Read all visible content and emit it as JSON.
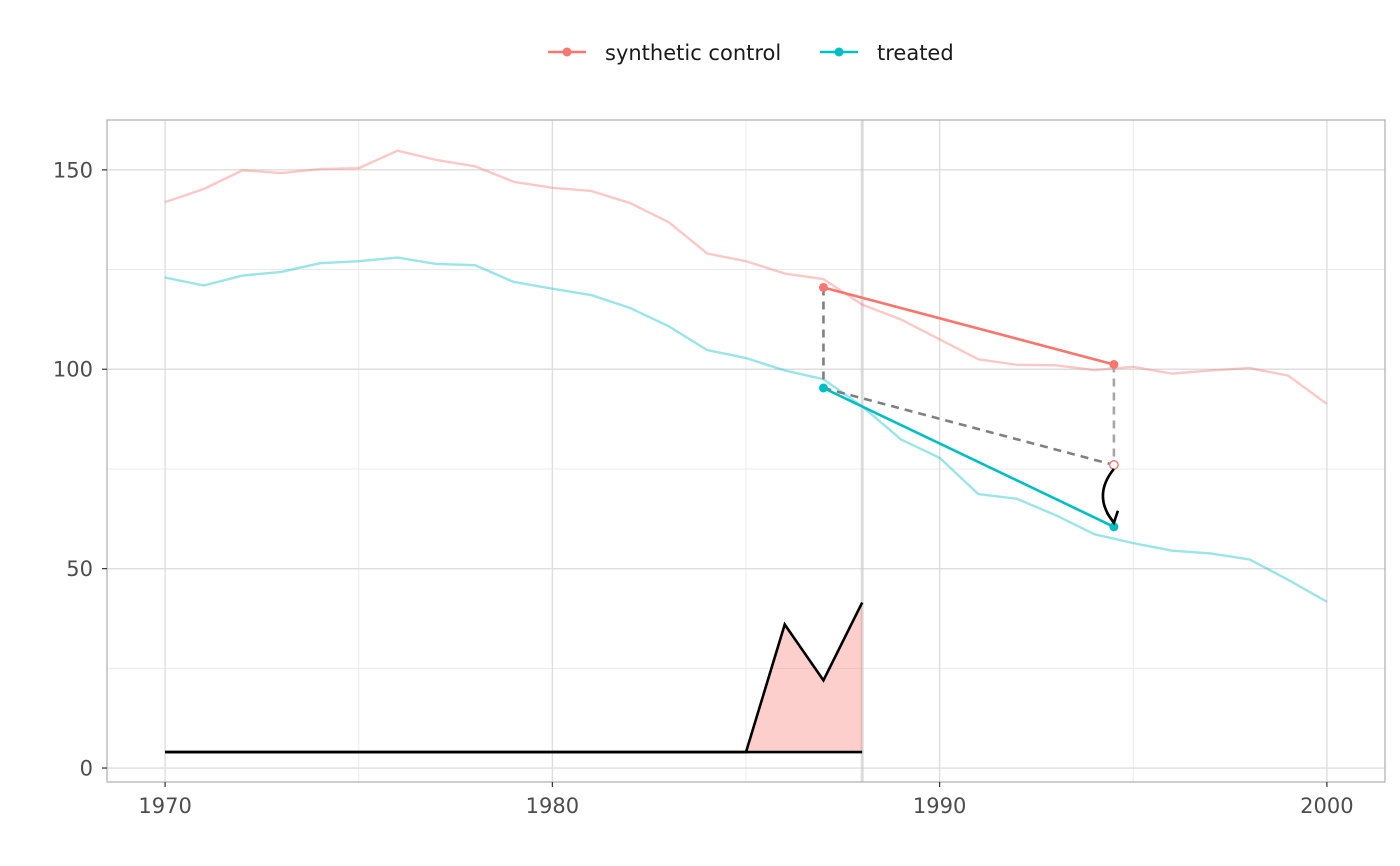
{
  "chart_data": {
    "type": "line",
    "title": "",
    "xlabel": "",
    "ylabel": "",
    "xlim": [
      1968.5,
      2001.5
    ],
    "ylim": [
      -3.5,
      162.5
    ],
    "x_ticks": [
      1970,
      1980,
      1990,
      2000
    ],
    "x_minor_ticks": [
      1975,
      1985,
      1995
    ],
    "y_ticks": [
      0,
      50,
      100,
      150
    ],
    "y_minor_ticks": [
      25,
      75,
      125
    ],
    "grid": true,
    "legend_position": "top",
    "treatment_year": 1988,
    "legend": [
      {
        "label": "synthetic control",
        "color": "#F8766D"
      },
      {
        "label": "treated",
        "color": "#00BFC4"
      }
    ],
    "series": [
      {
        "name": "synthetic control",
        "color": "#F8766D",
        "x": [
          1970,
          1971,
          1972,
          1973,
          1974,
          1975,
          1976,
          1977,
          1978,
          1979,
          1980,
          1981,
          1982,
          1983,
          1984,
          1985,
          1986,
          1987,
          1988,
          1989,
          1990,
          1991,
          1992,
          1993,
          1994,
          1995,
          1996,
          1997,
          1998,
          1999,
          2000
        ],
        "values": [
          141.9,
          145.2,
          149.9,
          149.2,
          150.2,
          150.4,
          154.8,
          152.5,
          150.9,
          147.0,
          145.5,
          144.7,
          141.7,
          136.9,
          129.0,
          127.1,
          124.0,
          122.6,
          116.2,
          112.5,
          107.5,
          102.5,
          101.1,
          101.0,
          99.8,
          100.6,
          98.9,
          99.7,
          100.3,
          98.4,
          91.3
        ]
      },
      {
        "name": "treated",
        "color": "#00BFC4",
        "x": [
          1970,
          1971,
          1972,
          1973,
          1974,
          1975,
          1976,
          1977,
          1978,
          1979,
          1980,
          1981,
          1982,
          1983,
          1984,
          1985,
          1986,
          1987,
          1988,
          1989,
          1990,
          1991,
          1992,
          1993,
          1994,
          1995,
          1996,
          1997,
          1998,
          1999,
          2000
        ],
        "values": [
          123.0,
          121.0,
          123.5,
          124.4,
          126.6,
          127.1,
          128.0,
          126.4,
          126.1,
          121.9,
          120.2,
          118.6,
          115.4,
          110.8,
          104.8,
          102.8,
          99.7,
          97.5,
          90.7,
          82.4,
          77.8,
          68.7,
          67.5,
          63.4,
          58.6,
          56.4,
          54.5,
          53.8,
          52.3,
          47.2,
          41.7
        ]
      }
    ],
    "weight_series": {
      "x": [
        1970,
        1971,
        1972,
        1973,
        1974,
        1975,
        1976,
        1977,
        1978,
        1979,
        1980,
        1981,
        1982,
        1983,
        1984,
        1985,
        1986,
        1987,
        1988
      ],
      "values": [
        4,
        4,
        4,
        4,
        4,
        4,
        4,
        4,
        4,
        4,
        4,
        4,
        4,
        4,
        4,
        4,
        36,
        22,
        41.5
      ],
      "baseline": 4,
      "fill_color": "#F8766D",
      "line_color": "#000000"
    },
    "annotation": {
      "synthetic_segment": {
        "x": [
          1987,
          1994.5
        ],
        "y": [
          120.5,
          101.2
        ],
        "color": "#F8766D"
      },
      "treated_segment": {
        "x": [
          1987,
          1994.5
        ],
        "y": [
          95.3,
          60.5
        ],
        "color": "#00BFC4"
      },
      "counterfactual_point": {
        "x": 1994.5,
        "y": 76.0
      },
      "arrow": {
        "from": [
          1994.5,
          76.0
        ],
        "to": [
          1994.5,
          60.5
        ]
      }
    }
  }
}
